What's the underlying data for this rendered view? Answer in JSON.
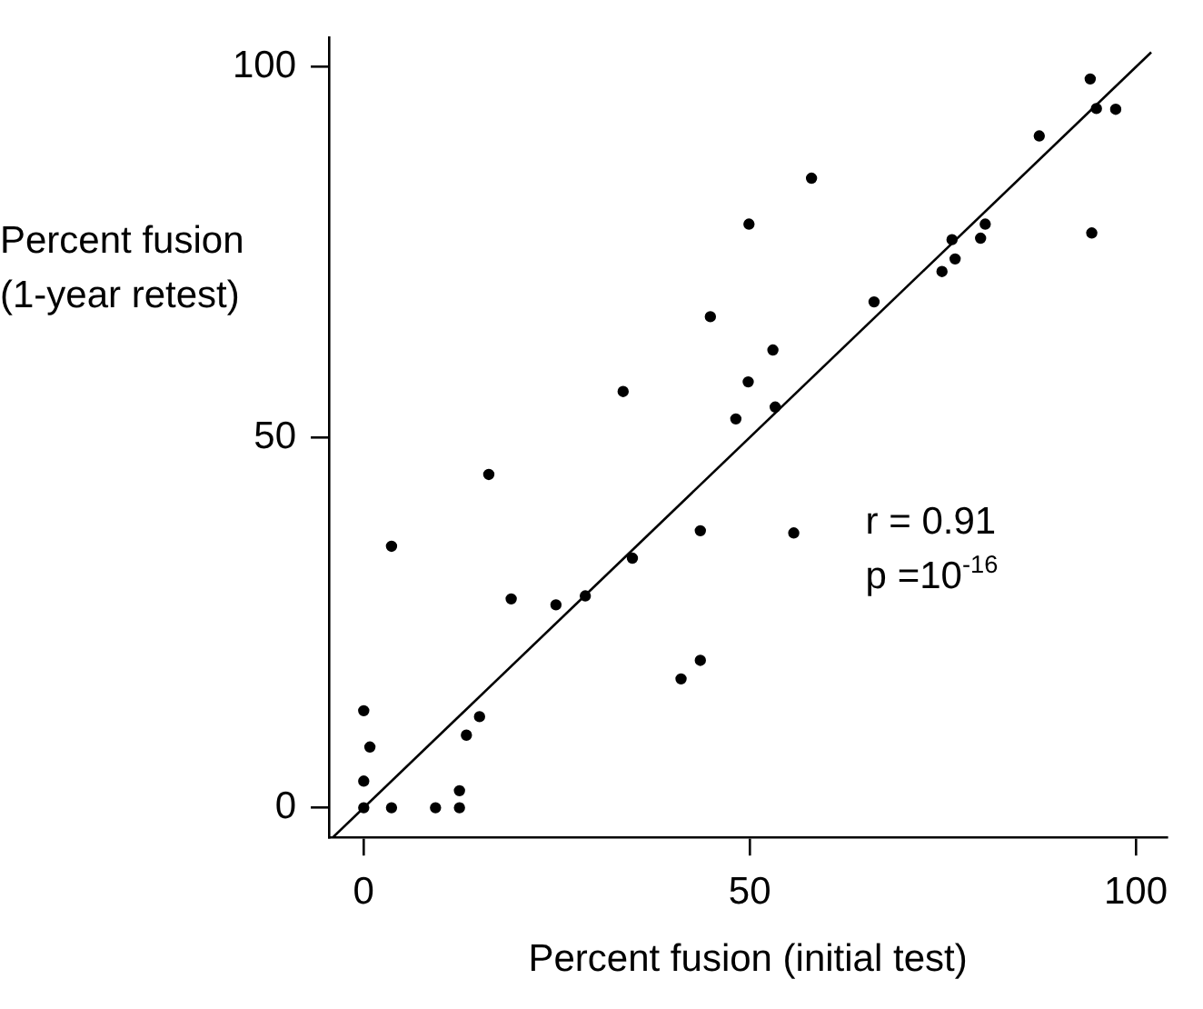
{
  "chart_data": {
    "type": "scatter",
    "xlabel": "Percent fusion (initial test)",
    "ylabel": "Percent fusion\n(1-year retest)",
    "xlim": [
      -4.5,
      104
    ],
    "ylim": [
      -4,
      104
    ],
    "xticks": [
      0,
      50,
      100
    ],
    "yticks": [
      0,
      50,
      100
    ],
    "grid": false,
    "legend": false,
    "annotations": [
      "r = 0.91",
      "p =10$^{-16}$"
    ],
    "series": [
      {
        "color": "#000000",
        "marker": "circle",
        "x": [
          0,
          3.6,
          9.3,
          12.4,
          12.4,
          0,
          0.8,
          0,
          13.3,
          15,
          19.1,
          24.9,
          28.7,
          41.1,
          43.6,
          3.6,
          16.2,
          33.6,
          34.8,
          43.6,
          55.7,
          48.2,
          49.8,
          53,
          53.3,
          44.9,
          49.9,
          58,
          66.1,
          74.9,
          76.6,
          76.2,
          79.9,
          80.5,
          87.5,
          94.1,
          94.9,
          97.4,
          94.3
        ],
        "values": [
          0,
          0,
          0,
          0,
          2.3,
          3.6,
          8.2,
          13.1,
          9.8,
          12.3,
          28.2,
          27.4,
          28.6,
          17.4,
          19.9,
          35.3,
          45,
          56.2,
          33.7,
          37.4,
          37.1,
          52.5,
          57.5,
          61.8,
          54.1,
          66.3,
          78.8,
          85,
          68.3,
          72.4,
          74.1,
          76.7,
          76.9,
          78.8,
          90.7,
          98.4,
          94.4,
          94.3,
          77.6
        ]
      },
      {
        "type": "line",
        "marker": "none",
        "color": "#000000",
        "x": [
          -4,
          102
        ],
        "values": [
          -4,
          102
        ]
      }
    ]
  }
}
